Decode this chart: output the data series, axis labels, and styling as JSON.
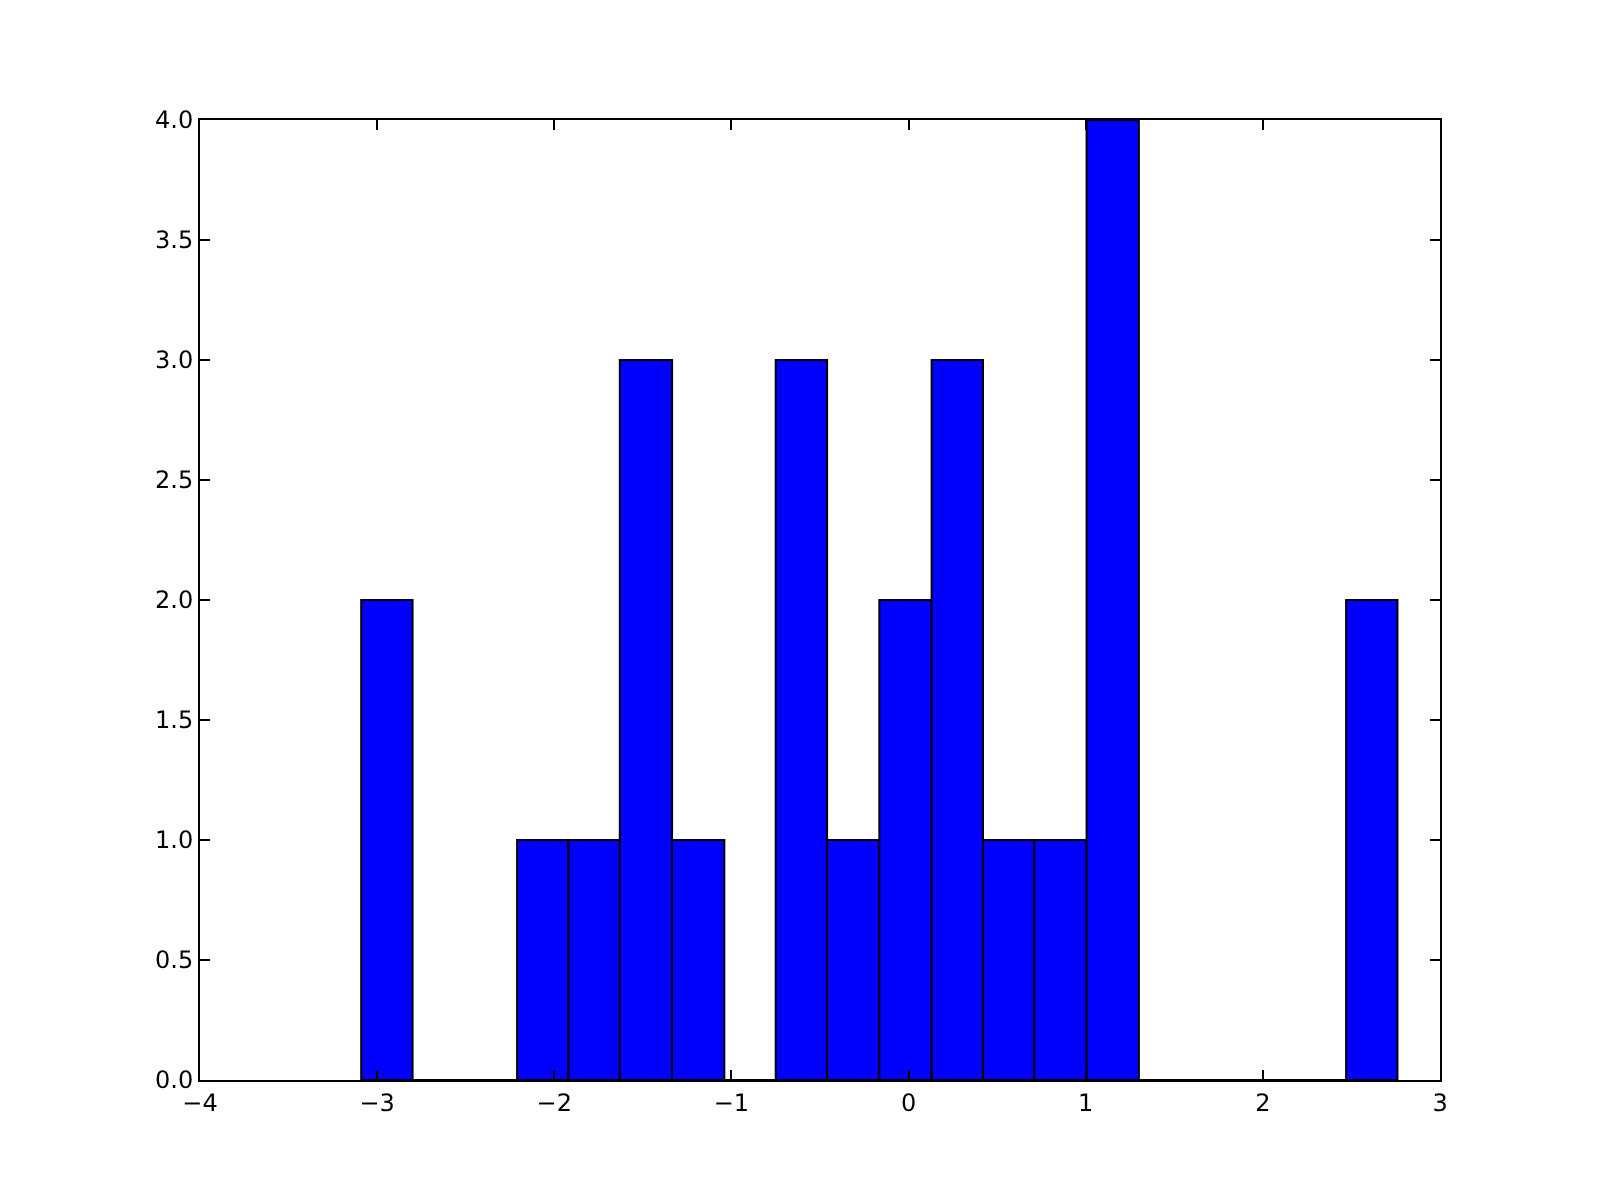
{
  "chart_data": {
    "type": "histogram",
    "color": "#0000ff",
    "bins": [
      -3.09,
      -2.8,
      -2.21,
      -1.92,
      -1.63,
      -1.335,
      -1.04,
      -0.75,
      -0.46,
      -0.165,
      0.13,
      0.42,
      0.71,
      1.005,
      1.3,
      2.47,
      2.76
    ],
    "values": [
      2,
      0,
      1,
      1,
      3,
      1,
      0,
      3,
      1,
      2,
      3,
      1,
      1,
      4,
      0,
      2
    ],
    "xlim": [
      -4,
      3
    ],
    "xticks": [
      {
        "value": -4,
        "label": "−4"
      },
      {
        "value": -3,
        "label": "−3"
      },
      {
        "value": -2,
        "label": "−2"
      },
      {
        "value": -1,
        "label": "−1"
      },
      0,
      1,
      2,
      3
    ],
    "ylim": [
      0,
      4
    ],
    "yticks": [
      {
        "value": 0,
        "label": "0.0"
      },
      {
        "value": 0.5,
        "label": "0.5"
      },
      {
        "value": 1,
        "label": "1.0"
      },
      {
        "value": 1.5,
        "label": "1.5"
      },
      {
        "value": 2,
        "label": "2.0"
      },
      {
        "value": 2.5,
        "label": "2.5"
      },
      {
        "value": 3,
        "label": "3.0"
      },
      {
        "value": 3.5,
        "label": "3.5"
      },
      {
        "value": 4,
        "label": "4.0"
      }
    ],
    "grid": false
  }
}
